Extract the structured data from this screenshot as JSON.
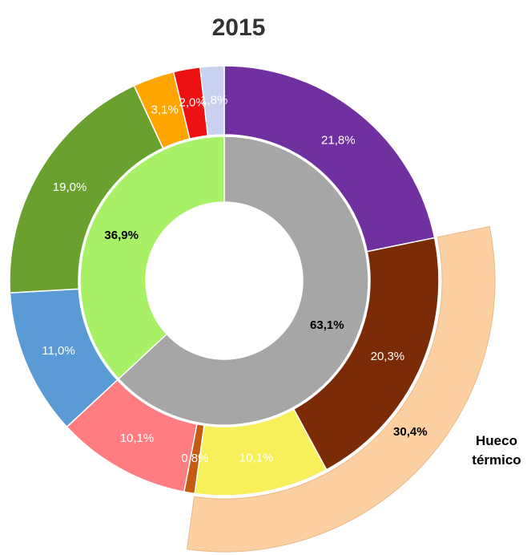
{
  "chart_data": {
    "type": "nested-donut",
    "title": "2015",
    "outer": {
      "values": [
        21.8,
        20.3,
        10.1,
        0.8,
        10.1,
        11.0,
        19.0,
        3.1,
        2.0,
        1.8
      ],
      "value_labels": [
        "21,8%",
        "20,3%",
        "10,1%",
        "0,8%",
        "10,1%",
        "11,0%",
        "19,0%",
        "3,1%",
        "2,0%",
        "1,8%"
      ],
      "colors": [
        "#7030a0",
        "#7b2c06",
        "#f7f05a",
        "#c55a11",
        "#ff7c80",
        "#5b9bd5",
        "#6aa12e",
        "#ffa500",
        "#ee1111",
        "#c9d0f0"
      ]
    },
    "inner": {
      "values": [
        63.1,
        36.9
      ],
      "value_labels": [
        "63,1%",
        "36,9%"
      ],
      "colors": [
        "#a6a6a6",
        "#a8f066"
      ]
    },
    "annotation": {
      "text": "Hueco térmico",
      "value": 30.4,
      "value_label": "30,4%",
      "color": "#fdd0a2"
    }
  }
}
